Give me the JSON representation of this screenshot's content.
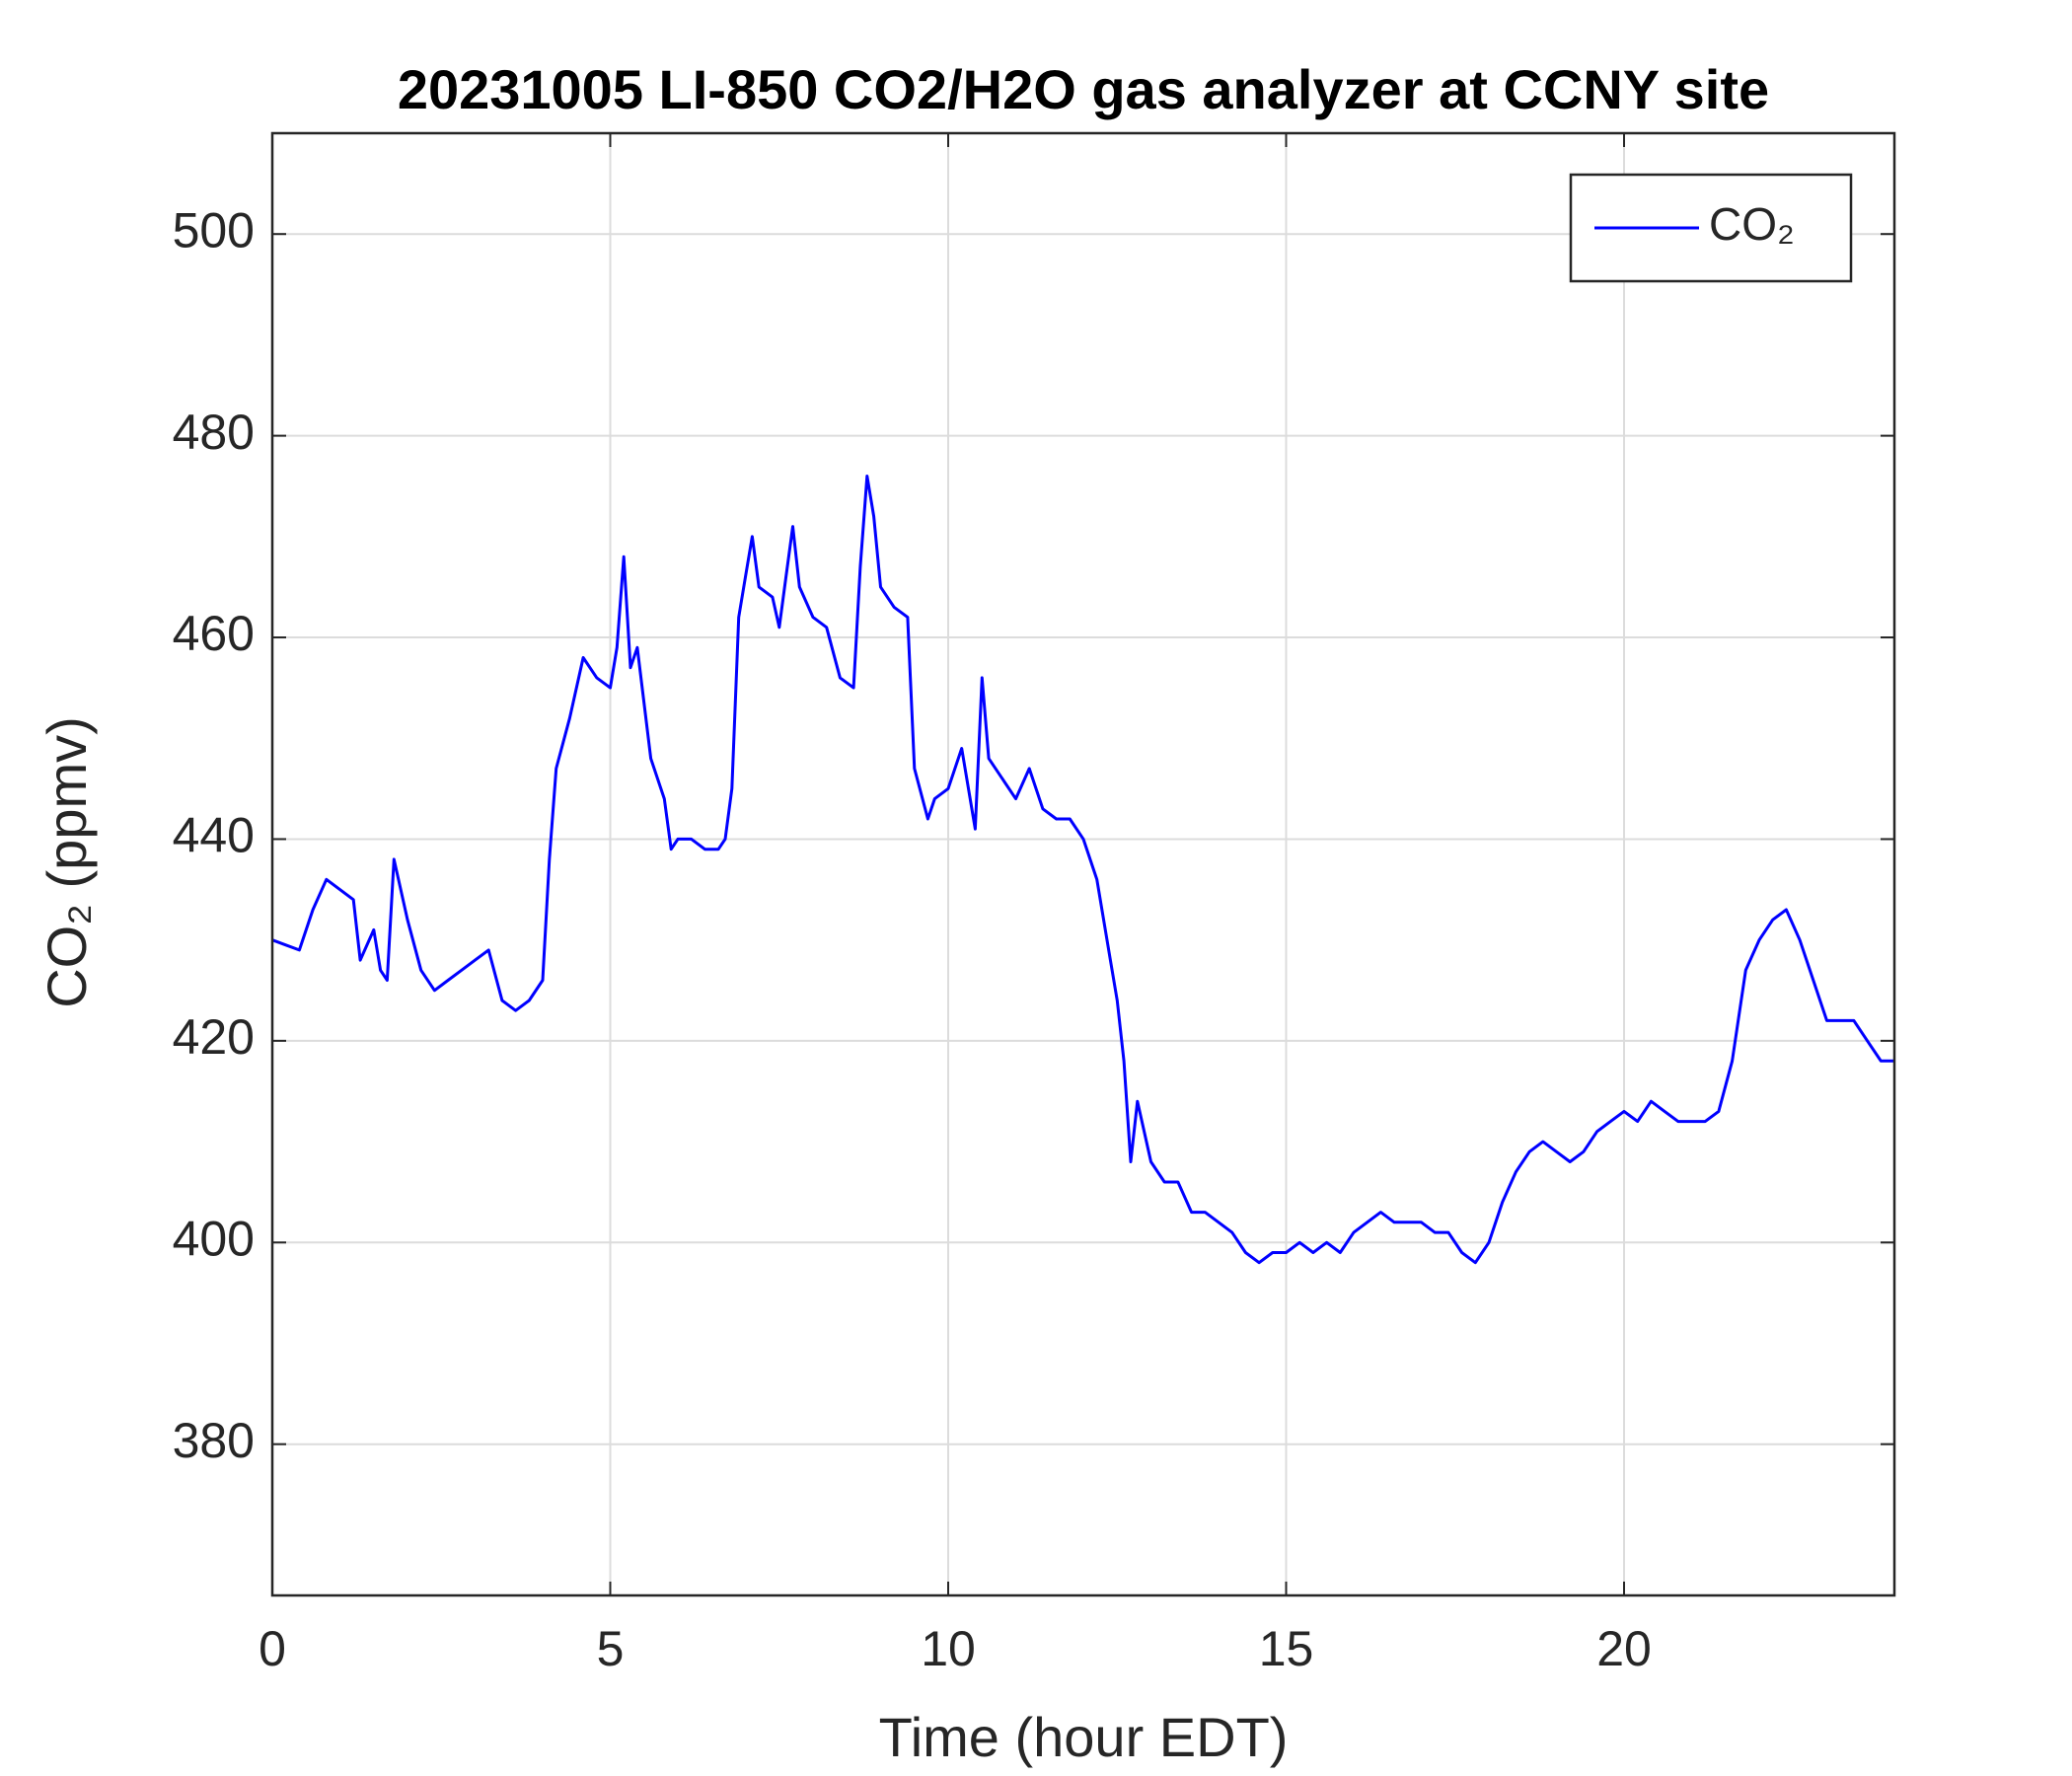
{
  "chart_data": {
    "type": "line",
    "title": "20231005 LI-850 CO2/H2O gas analyzer at CCNY site",
    "xlabel": "Time (hour EDT)",
    "ylabel": "CO₂ (ppmv)",
    "xlim": [
      0,
      24
    ],
    "ylim": [
      365,
      510
    ],
    "xticks": [
      0,
      5,
      10,
      15,
      20
    ],
    "yticks": [
      380,
      400,
      420,
      440,
      460,
      480,
      500
    ],
    "grid": true,
    "legend": "upper right",
    "x": [
      0,
      0.2,
      0.4,
      0.6,
      0.8,
      1.0,
      1.2,
      1.3,
      1.5,
      1.6,
      1.7,
      1.8,
      2.0,
      2.2,
      2.4,
      2.6,
      2.8,
      3.0,
      3.2,
      3.4,
      3.6,
      3.8,
      4.0,
      4.1,
      4.2,
      4.4,
      4.6,
      4.8,
      5.0,
      5.1,
      5.2,
      5.3,
      5.4,
      5.6,
      5.8,
      5.9,
      6.0,
      6.2,
      6.4,
      6.6,
      6.7,
      6.8,
      6.9,
      7.0,
      7.1,
      7.2,
      7.4,
      7.5,
      7.6,
      7.7,
      7.8,
      8.0,
      8.2,
      8.4,
      8.6,
      8.7,
      8.8,
      8.9,
      9.0,
      9.2,
      9.4,
      9.5,
      9.7,
      9.8,
      10.0,
      10.2,
      10.4,
      10.5,
      10.6,
      10.8,
      11.0,
      11.2,
      11.4,
      11.6,
      11.8,
      12.0,
      12.2,
      12.4,
      12.5,
      12.6,
      12.7,
      12.8,
      13.0,
      13.2,
      13.4,
      13.6,
      13.8,
      14.0,
      14.2,
      14.4,
      14.6,
      14.8,
      15.0,
      15.2,
      15.4,
      15.6,
      15.8,
      16.0,
      16.2,
      16.4,
      16.6,
      16.8,
      17.0,
      17.2,
      17.4,
      17.6,
      17.8,
      18.0,
      18.2,
      18.4,
      18.6,
      18.8,
      19.0,
      19.2,
      19.4,
      19.6,
      19.8,
      20.0,
      20.2,
      20.4,
      20.6,
      20.8,
      21.0,
      21.2,
      21.4,
      21.6,
      21.8,
      22.0,
      22.2,
      22.4,
      22.6,
      22.8,
      23.0,
      23.2,
      23.4,
      23.6,
      23.8,
      24.0
    ],
    "series": [
      {
        "name": "CO₂",
        "color": "#0000ff",
        "values": [
          430,
          429.5,
          429,
          433,
          436,
          435,
          434,
          428,
          431,
          427,
          426,
          438,
          432,
          427,
          425,
          426,
          427,
          428,
          429,
          424,
          423,
          424,
          426,
          438,
          447,
          452,
          458,
          456,
          455,
          459,
          468,
          457,
          459,
          448,
          444,
          439,
          440,
          440,
          439,
          439,
          440,
          445,
          462,
          466,
          470,
          465,
          464,
          461,
          466,
          471,
          465,
          462,
          461,
          456,
          455,
          467,
          476,
          472,
          465,
          463,
          462,
          447,
          442,
          444,
          445,
          449,
          441,
          456,
          448,
          446,
          444,
          447,
          443,
          442,
          442,
          440,
          436,
          428,
          424,
          418,
          408,
          414,
          408,
          406,
          406,
          403,
          403,
          402,
          401,
          399,
          398,
          399,
          399,
          400,
          399,
          400,
          399,
          401,
          402,
          403,
          402,
          402,
          402,
          401,
          401,
          399,
          398,
          400,
          404,
          407,
          409,
          410,
          409,
          408,
          409,
          411,
          412,
          413,
          412,
          414,
          413,
          412,
          412,
          412,
          413,
          418,
          427,
          430,
          432,
          433,
          430,
          426,
          422,
          422,
          422,
          420,
          418,
          418
        ]
      }
    ]
  }
}
